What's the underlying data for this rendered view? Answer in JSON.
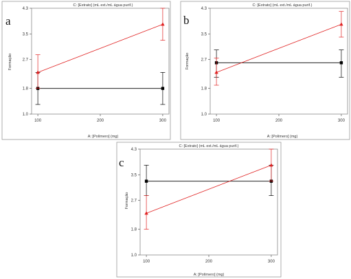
{
  "chart_data": [
    {
      "type": "line",
      "panel_label": "a",
      "title": "C: [Extrato] (mL ext./mL água purif.)",
      "xlabel": "A: [Polímero] (mg)",
      "ylabel": "Formação",
      "x_ticks": [
        "100",
        "200",
        "300"
      ],
      "y_ticks": [
        "1.0",
        "1.8",
        "2.7",
        "3.5",
        "4.3"
      ],
      "xlim": [
        90,
        310
      ],
      "ylim": [
        1.0,
        4.3
      ],
      "series": [
        {
          "color": "#000000",
          "marker": "square",
          "points": [
            {
              "x": 100,
              "y": 1.8,
              "lo": 1.3,
              "hi": 2.3
            },
            {
              "x": 300,
              "y": 1.8,
              "lo": 1.3,
              "hi": 2.3
            }
          ]
        },
        {
          "color": "#e02020",
          "marker": "triangle",
          "points": [
            {
              "x": 100,
              "y": 2.3,
              "lo": 1.8,
              "hi": 2.85
            },
            {
              "x": 300,
              "y": 3.8,
              "lo": 3.3,
              "hi": 4.3
            }
          ]
        }
      ]
    },
    {
      "type": "line",
      "panel_label": "b",
      "title": "C: [Extrato] (mL ext./mL água purif.)",
      "xlabel": "A: [Polímero] (mg)",
      "ylabel": "Formação",
      "x_ticks": [
        "100",
        "200",
        "300"
      ],
      "y_ticks": [
        "1.0",
        "1.8",
        "2.7",
        "3.5",
        "4.3"
      ],
      "xlim": [
        90,
        310
      ],
      "ylim": [
        1.0,
        4.3
      ],
      "series": [
        {
          "color": "#000000",
          "marker": "square",
          "points": [
            {
              "x": 100,
              "y": 2.6,
              "lo": 2.15,
              "hi": 3.0
            },
            {
              "x": 300,
              "y": 2.6,
              "lo": 2.15,
              "hi": 3.0
            }
          ]
        },
        {
          "color": "#e02020",
          "marker": "triangle",
          "points": [
            {
              "x": 100,
              "y": 2.3,
              "lo": 1.9,
              "hi": 2.75
            },
            {
              "x": 300,
              "y": 3.8,
              "lo": 3.4,
              "hi": 4.2
            }
          ]
        }
      ]
    },
    {
      "type": "line",
      "panel_label": "c",
      "title": "C: [Extrato] (mL ext./mL água purif.)",
      "xlabel": "A: [Polímero] (mg)",
      "ylabel": "Formação",
      "x_ticks": [
        "100",
        "200",
        "300"
      ],
      "y_ticks": [
        "1.0",
        "1.8",
        "2.7",
        "3.5",
        "4.3"
      ],
      "xlim": [
        90,
        310
      ],
      "ylim": [
        1.0,
        4.3
      ],
      "series": [
        {
          "color": "#000000",
          "marker": "square",
          "points": [
            {
              "x": 100,
              "y": 3.3,
              "lo": 2.85,
              "hi": 3.8
            },
            {
              "x": 300,
              "y": 3.3,
              "lo": 2.85,
              "hi": 3.8
            }
          ]
        },
        {
          "color": "#e02020",
          "marker": "triangle",
          "points": [
            {
              "x": 100,
              "y": 2.3,
              "lo": 1.8,
              "hi": 2.85
            },
            {
              "x": 300,
              "y": 3.8,
              "lo": 3.3,
              "hi": 4.3
            }
          ]
        }
      ]
    }
  ]
}
